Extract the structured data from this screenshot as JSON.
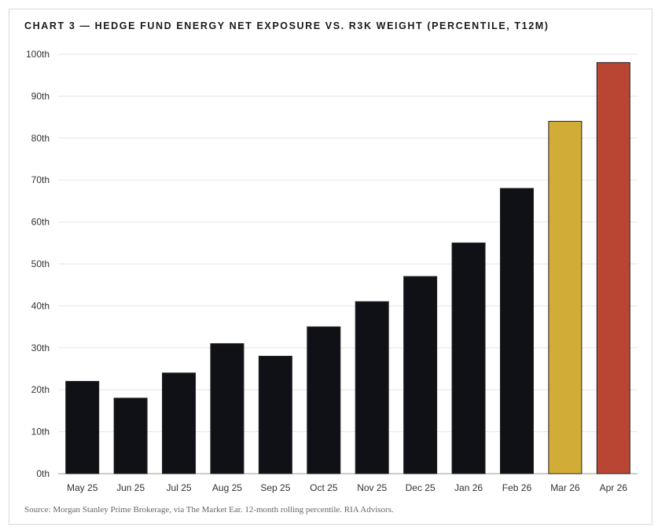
{
  "chart_data": {
    "type": "bar",
    "title": "CHART 3 — HEDGE FUND ENERGY NET EXPOSURE VS. R3K WEIGHT (PERCENTILE, T12M)",
    "categories": [
      "May 25",
      "Jun 25",
      "Jul 25",
      "Aug 25",
      "Sep 25",
      "Oct 25",
      "Nov 25",
      "Dec 25",
      "Jan 26",
      "Feb 26",
      "Mar 26",
      "Apr 26"
    ],
    "values": [
      22,
      18,
      24,
      31,
      28,
      35,
      41,
      47,
      55,
      68,
      84,
      98
    ],
    "bar_colors": [
      "#0f1117",
      "#0f1117",
      "#0f1117",
      "#0f1117",
      "#0f1117",
      "#0f1117",
      "#0f1117",
      "#0f1117",
      "#0f1117",
      "#0f1117",
      "#d1ad38",
      "#b84632"
    ],
    "ylim": [
      0,
      100
    ],
    "yticks": [
      0,
      10,
      20,
      30,
      40,
      50,
      60,
      70,
      80,
      90,
      100
    ],
    "ytick_labels": [
      "0th",
      "10th",
      "20th",
      "30th",
      "40th",
      "50th",
      "60th",
      "70th",
      "80th",
      "90th",
      "100th"
    ],
    "xlabel": "",
    "ylabel": "",
    "grid": true,
    "source": "Source: Morgan Stanley Prime Brokerage, via The Market Ear. 12-month rolling percentile. RIA Advisors."
  }
}
